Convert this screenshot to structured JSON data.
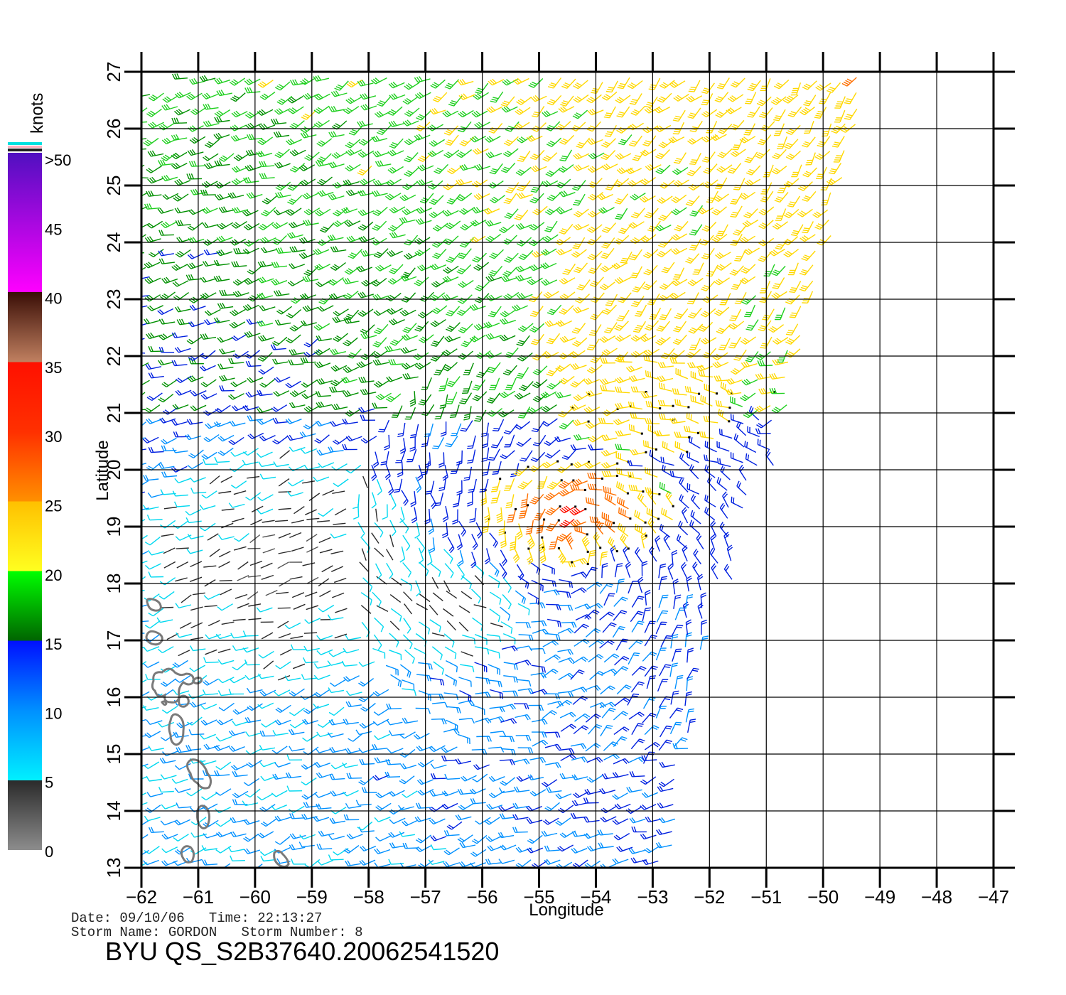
{
  "map": {
    "lon_range": [
      -62,
      -47
    ],
    "lat_range": [
      13,
      27
    ],
    "lon_ticks": [
      -62,
      -61,
      -60,
      -59,
      -58,
      -57,
      -56,
      -55,
      -54,
      -53,
      -52,
      -51,
      -50,
      -49,
      -48,
      -47
    ],
    "lat_ticks": [
      13,
      14,
      15,
      16,
      17,
      18,
      19,
      20,
      21,
      22,
      23,
      24,
      25,
      26,
      27
    ],
    "lon_labels": [
      "−62",
      "−61",
      "−60",
      "−59",
      "−58",
      "−57",
      "−56",
      "−55",
      "−54",
      "−53",
      "−52",
      "−51",
      "−50",
      "−49",
      "−48",
      "−47"
    ],
    "lat_labels": [
      "13",
      "14",
      "15",
      "16",
      "17",
      "18",
      "19",
      "20",
      "21",
      "22",
      "23",
      "24",
      "25",
      "26",
      "27"
    ],
    "xlabel": "Longitude",
    "ylabel": "Latitude",
    "grid": true,
    "content": "wind barbs coloured by speed over the western tropical Atlantic; Lesser Antilles islands outlined at lower-left"
  },
  "colorbar": {
    "title": "knots",
    "labels": [
      "0",
      "5",
      "10",
      "15",
      "20",
      "25",
      "30",
      "35",
      "40",
      "45",
      ">50"
    ],
    "colors": {
      "calm": "#8c8c8c",
      "dark": "#2a2a2a",
      "cyan": "#00f0ff",
      "blue": "#0010ff",
      "dark_green": "#006400",
      "green": "#00ff00",
      "yellow": "#ffff20",
      "orange": "#ff8000",
      "red": "#ff1000",
      "brown": "#3a0e06",
      "tan": "#c08060",
      "magenta": "#ff00ff",
      "purple": "#5010c0"
    }
  },
  "info": {
    "date_line": "Date: 09/10/06   Time: 22:13:27",
    "storm_line": "Storm Name: GORDON   Storm Number: 8",
    "product": "BYU QS_S2B37640.20062541520"
  }
}
